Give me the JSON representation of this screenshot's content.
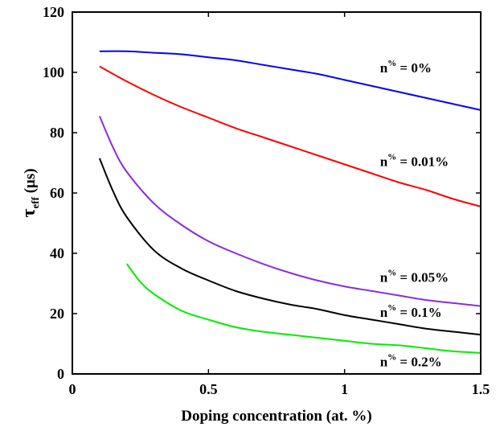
{
  "chart_data": {
    "type": "line",
    "xlabel": "Doping concentration (at. %)",
    "ylabel": "τ",
    "ylabel_sub": "eff",
    "ylabel_unit": " (μs)",
    "xlim": [
      0,
      1.5
    ],
    "ylim": [
      0,
      120
    ],
    "xticks": [
      0,
      0.5,
      1,
      1.5
    ],
    "xtick_labels": [
      "0",
      "0.5",
      "1",
      "1.5"
    ],
    "yticks": [
      0,
      20,
      40,
      60,
      80,
      100,
      120
    ],
    "ytick_labels": [
      "0",
      "20",
      "40",
      "60",
      "80",
      "100",
      "120"
    ],
    "grid": false,
    "legend": "none",
    "series": [
      {
        "color": "#0000ff",
        "x": [
          0.1,
          0.2,
          0.3,
          0.4,
          0.5,
          0.6,
          0.7,
          0.8,
          0.9,
          1.0,
          1.1,
          1.2,
          1.3,
          1.4,
          1.5
        ],
        "y": [
          107,
          107,
          106.5,
          106,
          105,
          104,
          102.5,
          101,
          99.5,
          97.5,
          95.5,
          93.5,
          91.5,
          89.5,
          87.5
        ]
      },
      {
        "color": "#ff0000",
        "x": [
          0.1,
          0.2,
          0.3,
          0.4,
          0.5,
          0.6,
          0.7,
          0.8,
          0.9,
          1.0,
          1.1,
          1.2,
          1.3,
          1.4,
          1.5
        ],
        "y": [
          102,
          97,
          92.5,
          88.5,
          85,
          81.5,
          78.5,
          75.5,
          72.5,
          69.5,
          66.5,
          63.5,
          61,
          58,
          55.5
        ]
      },
      {
        "color": "#8a2be2",
        "x": [
          0.1,
          0.15,
          0.2,
          0.3,
          0.4,
          0.5,
          0.6,
          0.7,
          0.8,
          0.9,
          1.0,
          1.1,
          1.2,
          1.3,
          1.4,
          1.5
        ],
        "y": [
          85.5,
          75,
          67,
          56.5,
          49.5,
          44,
          40,
          36.5,
          33.5,
          31,
          29,
          27.5,
          26,
          24.5,
          23.5,
          22.5
        ]
      },
      {
        "color": "#000000",
        "x": [
          0.1,
          0.15,
          0.2,
          0.3,
          0.4,
          0.5,
          0.6,
          0.7,
          0.8,
          0.9,
          1.0,
          1.1,
          1.2,
          1.3,
          1.4,
          1.5
        ],
        "y": [
          71.5,
          60.5,
          52,
          41,
          35,
          31,
          27.5,
          25,
          23,
          21.5,
          19.5,
          18,
          16.5,
          15,
          14,
          13
        ]
      },
      {
        "color": "#00ee00",
        "x": [
          0.2,
          0.25,
          0.3,
          0.4,
          0.5,
          0.6,
          0.7,
          0.8,
          0.9,
          1.0,
          1.1,
          1.2,
          1.3,
          1.4,
          1.5
        ],
        "y": [
          36.5,
          30.5,
          26.5,
          21,
          18,
          15.5,
          14,
          13,
          12,
          11,
          10,
          9.5,
          8.5,
          7.5,
          7
        ]
      }
    ],
    "annotations": [
      {
        "x": 1.13,
        "y": 100,
        "base": "n",
        "sup": "%",
        "rest": " = 0%"
      },
      {
        "x": 1.13,
        "y": 69,
        "base": "n",
        "sup": "%",
        "rest": " = 0.01%"
      },
      {
        "x": 1.13,
        "y": 30.5,
        "base": "n",
        "sup": "%",
        "rest": " = 0.05%"
      },
      {
        "x": 1.13,
        "y": 19,
        "base": "n",
        "sup": "%",
        "rest": " = 0.1%"
      },
      {
        "x": 1.13,
        "y": 2.5,
        "base": "n",
        "sup": "%",
        "rest": " = 0.2%"
      }
    ]
  }
}
